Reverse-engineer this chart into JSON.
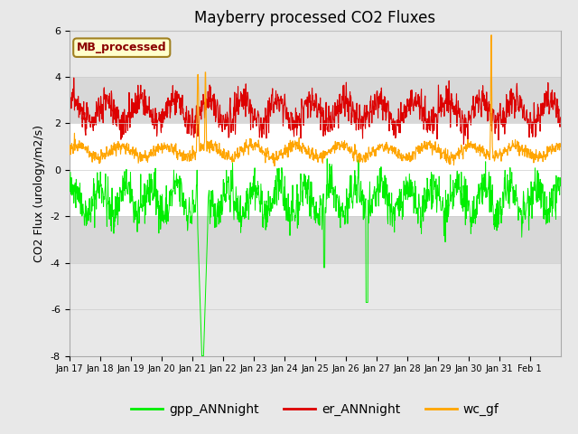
{
  "title": "Mayberry processed CO2 Fluxes",
  "ylabel": "CO2 Flux (urology/m2/s)",
  "ylim": [
    -8,
    6
  ],
  "yticks": [
    -8,
    -6,
    -4,
    -2,
    0,
    2,
    4,
    6
  ],
  "xtick_labels": [
    "Jan 17",
    "Jan 18",
    "Jan 19",
    "Jan 20",
    "Jan 21",
    "Jan 22",
    "Jan 23",
    "Jan 24",
    "Jan 25",
    "Jan 26",
    "Jan 27",
    "Jan 28",
    "Jan 29",
    "Jan 30",
    "Jan 31",
    "Feb 1"
  ],
  "background_color": "#e8e8e8",
  "plot_bg_color": "#ffffff",
  "gray_band_color": "#d8d8d8",
  "legend_box_text": "MB_processed",
  "legend_box_text_color": "#8b0000",
  "legend_box_bg": "#ffffcc",
  "legend_box_border": "#a08020",
  "line_colors": {
    "gpp": "#00ee00",
    "er": "#dd0000",
    "wc": "#ffa500"
  },
  "legend_labels": [
    "gpp_ANNnight",
    "er_ANNnight",
    "wc_gf"
  ],
  "n_points": 1440,
  "seed": 42,
  "title_fontsize": 12,
  "axis_fontsize": 9,
  "tick_fontsize": 8
}
